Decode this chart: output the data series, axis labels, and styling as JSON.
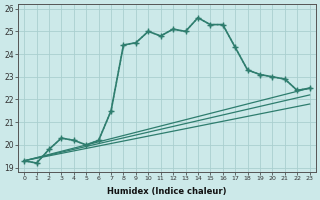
{
  "xlabel": "Humidex (Indice chaleur)",
  "bg_color": "#cce9e9",
  "grid_color": "#aacfcf",
  "line_color": "#2e7d6e",
  "ylim": [
    18.8,
    26.2
  ],
  "xlim": [
    -0.5,
    23.5
  ],
  "yticks": [
    19,
    20,
    21,
    22,
    23,
    24,
    25,
    26
  ],
  "xticks": [
    0,
    1,
    2,
    3,
    4,
    5,
    6,
    7,
    8,
    9,
    10,
    11,
    12,
    13,
    14,
    15,
    16,
    17,
    18,
    19,
    20,
    21,
    22,
    23
  ],
  "series": [
    {
      "x": [
        0,
        1,
        2,
        3,
        4,
        5,
        6,
        7,
        8,
        9,
        10,
        11,
        12,
        13,
        14,
        15,
        16,
        17,
        18,
        19,
        20,
        21,
        22,
        23
      ],
      "y": [
        19.3,
        19.2,
        19.8,
        20.3,
        20.2,
        20.0,
        20.2,
        21.5,
        24.4,
        24.5,
        25.0,
        24.8,
        25.1,
        25.0,
        25.6,
        25.3,
        25.3,
        24.3,
        23.3,
        23.1,
        23.0,
        22.9,
        22.4,
        22.5
      ],
      "marker": "+",
      "linestyle": "dotted",
      "linewidth": 1.0,
      "markersize": 3.5,
      "zorder": 4
    },
    {
      "x": [
        0,
        23
      ],
      "y": [
        19.3,
        22.5
      ],
      "marker": null,
      "linestyle": "-",
      "linewidth": 0.9,
      "zorder": 2
    },
    {
      "x": [
        0,
        23
      ],
      "y": [
        19.3,
        22.2
      ],
      "marker": null,
      "linestyle": "-",
      "linewidth": 0.9,
      "zorder": 2
    },
    {
      "x": [
        0,
        23
      ],
      "y": [
        19.3,
        21.8
      ],
      "marker": null,
      "linestyle": "-",
      "linewidth": 0.9,
      "zorder": 2
    },
    {
      "x": [
        0,
        1,
        2,
        3,
        4,
        5,
        6,
        7,
        8,
        9,
        10,
        11,
        12,
        13,
        14,
        15,
        16,
        17,
        18,
        19,
        20,
        21,
        22,
        23
      ],
      "y": [
        19.3,
        19.2,
        19.8,
        20.3,
        20.2,
        20.0,
        20.2,
        21.5,
        24.4,
        24.5,
        25.0,
        24.8,
        25.1,
        25.0,
        25.6,
        25.3,
        25.3,
        24.3,
        23.3,
        23.1,
        23.0,
        22.9,
        22.4,
        22.5
      ],
      "marker": "+",
      "linestyle": "-",
      "linewidth": 1.2,
      "markersize": 4,
      "zorder": 5
    }
  ]
}
